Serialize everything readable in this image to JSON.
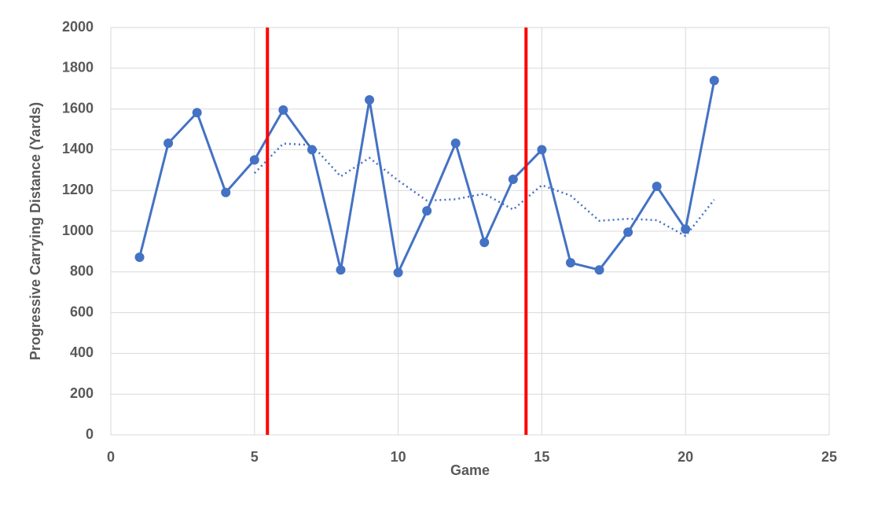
{
  "chart_data": {
    "type": "line",
    "x_label": "Game",
    "y_label": "Progressive Carrying Distance (Yards)",
    "x": [
      1,
      2,
      3,
      4,
      5,
      6,
      7,
      8,
      9,
      10,
      11,
      12,
      13,
      14,
      15,
      16,
      17,
      18,
      19,
      20,
      21
    ],
    "series": [
      {
        "color": "#4472c4",
        "style": "solid",
        "markers": true,
        "values": [
          872,
          1432,
          1582,
          1190,
          1350,
          1595,
          1400,
          810,
          1645,
          797,
          1100,
          1432,
          945,
          1255,
          1400,
          845,
          810,
          995,
          1220,
          1010,
          1740
        ]
      },
      {
        "color": "#4472c4",
        "style": "dotted",
        "markers": false,
        "values": [
          null,
          null,
          null,
          null,
          1285,
          1430,
          1423,
          1269,
          1360,
          1249,
          1150,
          1157,
          1184,
          1106,
          1226,
          1175,
          1051,
          1061,
          1054,
          976,
          1155
        ]
      }
    ],
    "vlines": {
      "color": "#ff0000",
      "x": [
        5.45,
        14.45
      ]
    },
    "xlim": [
      0,
      25
    ],
    "xticks": [
      0,
      5,
      10,
      15,
      20,
      25
    ],
    "ylim": [
      0,
      2000
    ],
    "yticks": [
      0,
      200,
      400,
      600,
      800,
      1000,
      1200,
      1400,
      1600,
      1800,
      2000
    ],
    "grid": true
  }
}
